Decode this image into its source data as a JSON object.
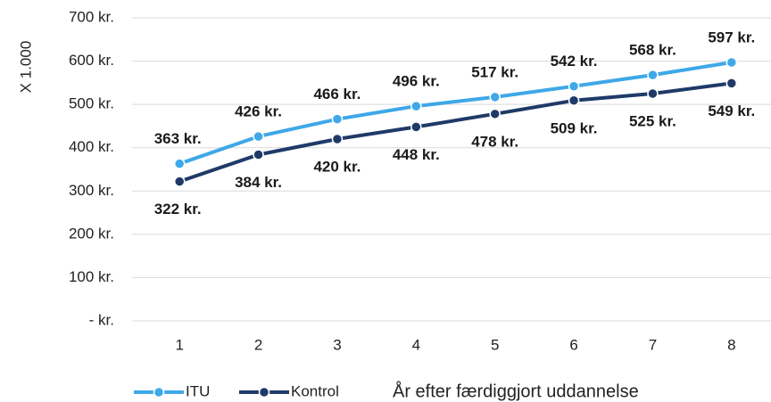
{
  "chart_data": {
    "type": "line",
    "y_axis_label": "X 1.000",
    "x_axis_label": "År efter færdiggjort uddannelse",
    "categories": [
      "1",
      "2",
      "3",
      "4",
      "5",
      "6",
      "7",
      "8"
    ],
    "series": [
      {
        "name": "ITU",
        "color": "#3ea8e8",
        "values": [
          363,
          426,
          466,
          496,
          517,
          542,
          568,
          597
        ],
        "value_labels": [
          "363 kr.",
          "426 kr.",
          "466 kr.",
          "496 kr.",
          "517 kr.",
          "542 kr.",
          "568 kr.",
          "597 kr."
        ]
      },
      {
        "name": "Kontrol",
        "color": "#1f3a68",
        "values": [
          322,
          384,
          420,
          448,
          478,
          509,
          525,
          549
        ],
        "value_labels": [
          "322 kr.",
          "384 kr.",
          "420 kr.",
          "448 kr.",
          "478 kr.",
          "509 kr.",
          "525 kr.",
          "549 kr."
        ]
      }
    ],
    "ylim": [
      0,
      700
    ],
    "yticks": [
      {
        "value": 0,
        "label": "- kr."
      },
      {
        "value": 100,
        "label": "100 kr."
      },
      {
        "value": 200,
        "label": "200 kr."
      },
      {
        "value": 300,
        "label": "300 kr."
      },
      {
        "value": 400,
        "label": "400 kr."
      },
      {
        "value": 500,
        "label": "500 kr."
      },
      {
        "value": 600,
        "label": "600 kr."
      },
      {
        "value": 700,
        "label": "700 kr."
      }
    ],
    "grid": true,
    "legend": "bottom"
  }
}
